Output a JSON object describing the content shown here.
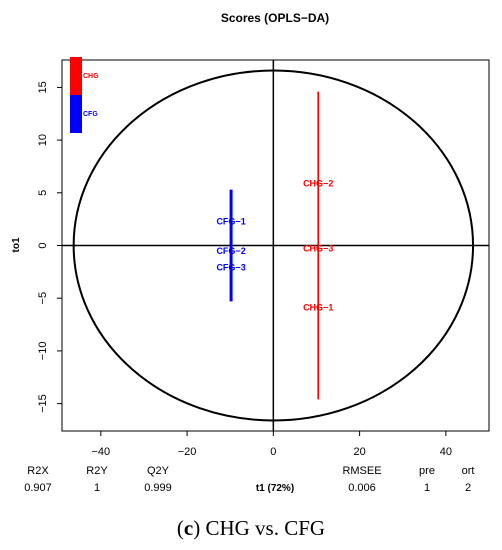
{
  "chart_data": {
    "type": "scatter",
    "title": "Scores (OPLS−DA)",
    "xlabel": "t1 (72%)",
    "ylabel": "to1",
    "xlim": [
      -49,
      50
    ],
    "ylim": [
      -17.6,
      17.6
    ],
    "x_ticks": [
      -40,
      -20,
      0,
      20,
      40
    ],
    "x_tick_labels": [
      "−40",
      "−20",
      "0",
      "20",
      "40"
    ],
    "y_ticks": [
      -15,
      -10,
      -5,
      0,
      5,
      10,
      15
    ],
    "y_tick_labels": [
      "−15",
      "−10",
      "−5",
      "0",
      "5",
      "10",
      "15"
    ],
    "ellipse": {
      "cx": 0,
      "cy": 0,
      "rx": 46.3,
      "ry": 16.6
    },
    "reference_lines": {
      "x": 0,
      "y": 0
    },
    "series": [
      {
        "name": "CHG",
        "color": "#ff0000",
        "points": [
          {
            "label": "CHG−1",
            "x": 10.4,
            "y": -5.9
          },
          {
            "label": "CHG−2",
            "x": 10.4,
            "y": 5.9
          },
          {
            "label": "CHG−3",
            "x": 10.4,
            "y": -0.3
          }
        ],
        "segment": {
          "x": 10.4,
          "y_from": -14.6,
          "y_to": 14.6
        }
      },
      {
        "name": "CFG",
        "color": "#0000ff",
        "points": [
          {
            "label": "CFG−1",
            "x": -9.8,
            "y": 2.3
          },
          {
            "label": "CFG−2",
            "x": -9.8,
            "y": -0.5
          },
          {
            "label": "CFG−3",
            "x": -9.8,
            "y": -2.1
          }
        ],
        "segment": {
          "x": -9.8,
          "y_from": -5.3,
          "y_to": 5.3
        }
      }
    ],
    "legend": {
      "placement": "top-left",
      "entries": [
        {
          "label": "CHG",
          "color": "#ff0000"
        },
        {
          "label": "CFG",
          "color": "#0000ff"
        }
      ]
    },
    "stats": [
      {
        "name": "R2X",
        "value": "0.907"
      },
      {
        "name": "R2Y",
        "value": "1"
      },
      {
        "name": "Q2Y",
        "value": "0.999"
      },
      {
        "name": "RMSEE",
        "value": "0.006"
      },
      {
        "name": "pre",
        "value": "1"
      },
      {
        "name": "ort",
        "value": "2"
      }
    ]
  },
  "caption": {
    "panel_letter": "c",
    "text": "CHG vs. CFG"
  }
}
